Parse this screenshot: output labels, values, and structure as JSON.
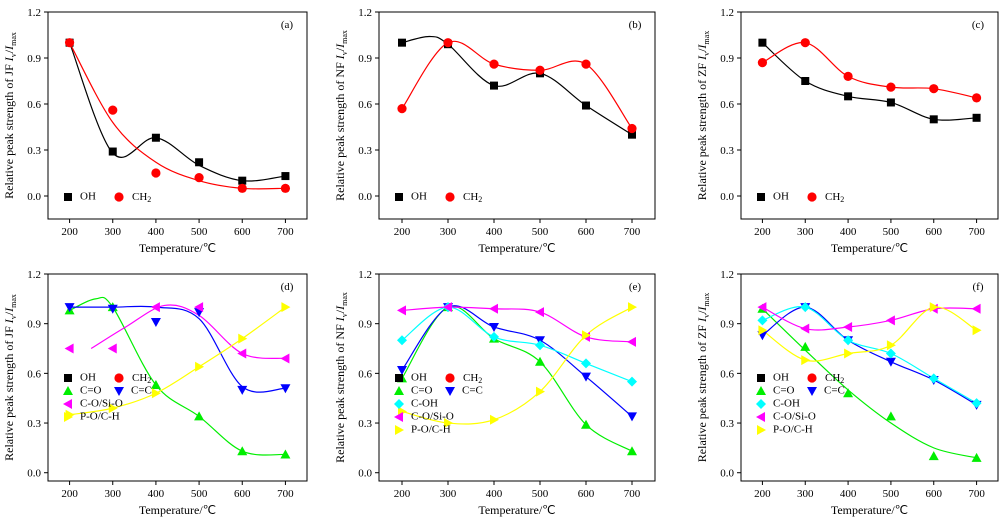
{
  "chart_data": [
    {
      "panel": "(a)",
      "type": "scatter",
      "ylabel": "Relative peak strength of JF Iv/Imax",
      "xlabel": "Temperature/℃",
      "xlim": [
        150,
        750
      ],
      "ylim": [
        -0.15,
        1.2
      ],
      "xticks": [
        200,
        300,
        400,
        500,
        600,
        700
      ],
      "yticks": [
        "0.0",
        "0.3",
        "0.6",
        "0.9",
        "1.2"
      ],
      "legend": "bottom-left",
      "series": [
        {
          "name": "OH",
          "marker": "square",
          "color": "#000000",
          "x": [
            200,
            300,
            400,
            500,
            600,
            700
          ],
          "y": [
            1.0,
            0.29,
            0.38,
            0.22,
            0.1,
            0.13
          ],
          "curve": [
            [
              200,
              1.0
            ],
            [
              300,
              0.28
            ],
            [
              400,
              0.38
            ],
            [
              500,
              0.2
            ],
            [
              600,
              0.1
            ],
            [
              700,
              0.13
            ]
          ]
        },
        {
          "name": "CH2",
          "marker": "circle",
          "color": "#ff0000",
          "x": [
            200,
            300,
            400,
            500,
            600,
            700
          ],
          "y": [
            1.0,
            0.56,
            0.15,
            0.12,
            0.05,
            0.05
          ],
          "curve": [
            [
              200,
              1.0
            ],
            [
              300,
              0.48
            ],
            [
              400,
              0.22
            ],
            [
              500,
              0.1
            ],
            [
              600,
              0.05
            ],
            [
              700,
              0.05
            ]
          ]
        }
      ]
    },
    {
      "panel": "(b)",
      "type": "scatter",
      "ylabel": "Relative peak strength of NF Iv/Imax",
      "xlabel": "Temperature/℃",
      "xlim": [
        150,
        750
      ],
      "ylim": [
        -0.15,
        1.2
      ],
      "xticks": [
        200,
        300,
        400,
        500,
        600,
        700
      ],
      "yticks": [
        "0.0",
        "0.3",
        "0.6",
        "0.9",
        "1.2"
      ],
      "legend": "bottom-left",
      "series": [
        {
          "name": "OH",
          "marker": "square",
          "color": "#000000",
          "x": [
            200,
            300,
            400,
            500,
            600,
            700
          ],
          "y": [
            1.0,
            0.99,
            0.72,
            0.8,
            0.59,
            0.4
          ],
          "curve": [
            [
              200,
              1.0
            ],
            [
              260,
              1.04
            ],
            [
              300,
              0.99
            ],
            [
              400,
              0.72
            ],
            [
              500,
              0.8
            ],
            [
              600,
              0.59
            ],
            [
              700,
              0.4
            ]
          ]
        },
        {
          "name": "CH2",
          "marker": "circle",
          "color": "#ff0000",
          "x": [
            200,
            300,
            400,
            500,
            600,
            700
          ],
          "y": [
            0.57,
            1.0,
            0.86,
            0.82,
            0.86,
            0.44
          ],
          "curve": [
            [
              200,
              0.57
            ],
            [
              300,
              1.0
            ],
            [
              400,
              0.86
            ],
            [
              500,
              0.82
            ],
            [
              600,
              0.86
            ],
            [
              700,
              0.44
            ]
          ]
        }
      ]
    },
    {
      "panel": "(c)",
      "type": "scatter",
      "ylabel": "Relative peak strength of ZF Iv/Imax",
      "xlabel": "Temperature/℃",
      "xlim": [
        150,
        750
      ],
      "ylim": [
        -0.15,
        1.2
      ],
      "xticks": [
        200,
        300,
        400,
        500,
        600,
        700
      ],
      "yticks": [
        "0.0",
        "0.3",
        "0.6",
        "0.9",
        "1.2"
      ],
      "legend": "bottom-left",
      "series": [
        {
          "name": "OH",
          "marker": "square",
          "color": "#000000",
          "x": [
            200,
            300,
            400,
            500,
            600,
            700
          ],
          "y": [
            1.0,
            0.75,
            0.65,
            0.61,
            0.5,
            0.51
          ],
          "curve": [
            [
              200,
              1.0
            ],
            [
              300,
              0.75
            ],
            [
              400,
              0.65
            ],
            [
              500,
              0.61
            ],
            [
              600,
              0.5
            ],
            [
              700,
              0.51
            ]
          ]
        },
        {
          "name": "CH2",
          "marker": "circle",
          "color": "#ff0000",
          "x": [
            200,
            300,
            400,
            500,
            600,
            700
          ],
          "y": [
            0.87,
            1.0,
            0.78,
            0.71,
            0.7,
            0.64
          ],
          "curve": [
            [
              200,
              0.87
            ],
            [
              300,
              1.0
            ],
            [
              400,
              0.78
            ],
            [
              500,
              0.71
            ],
            [
              600,
              0.7
            ],
            [
              700,
              0.64
            ]
          ]
        }
      ]
    },
    {
      "panel": "(d)",
      "type": "scatter",
      "ylabel": "Relative peak strength of JF Iv/Imax",
      "xlabel": "Temperature/℃",
      "xlim": [
        150,
        750
      ],
      "ylim": [
        -0.05,
        1.2
      ],
      "xticks": [
        200,
        300,
        400,
        500,
        600,
        700
      ],
      "yticks": [
        "0.0",
        "0.3",
        "0.6",
        "0.9",
        "1.2"
      ],
      "legend": "bottom-left",
      "series": [
        {
          "name": "C=O",
          "marker": "triangle-up",
          "color": "#00ee00",
          "x": [
            200,
            300,
            400,
            500,
            600,
            700
          ],
          "y": [
            0.98,
            1.0,
            0.53,
            0.34,
            0.13,
            0.11
          ],
          "curve": [
            [
              200,
              0.98
            ],
            [
              260,
              1.05
            ],
            [
              300,
              1.0
            ],
            [
              400,
              0.53
            ],
            [
              500,
              0.34
            ],
            [
              600,
              0.13
            ],
            [
              700,
              0.11
            ]
          ]
        },
        {
          "name": "C=C",
          "marker": "triangle-down",
          "color": "#0000ff",
          "x": [
            200,
            300,
            400,
            500,
            600,
            700
          ],
          "y": [
            1.0,
            0.99,
            0.91,
            0.97,
            0.5,
            0.51
          ],
          "curve": [
            [
              200,
              1.0
            ],
            [
              300,
              1.0
            ],
            [
              400,
              1.0
            ],
            [
              500,
              0.93
            ],
            [
              600,
              0.52
            ],
            [
              700,
              0.51
            ]
          ]
        },
        {
          "name": "C-O/Si-O",
          "marker": "triangle-left",
          "color": "#ff00ff",
          "x": [
            200,
            300,
            400,
            500,
            600,
            700
          ],
          "y": [
            0.75,
            0.75,
            1.0,
            1.0,
            0.72,
            0.69
          ],
          "curve": [
            [
              250,
              0.75
            ],
            [
              330,
              0.88
            ],
            [
              420,
              1.01
            ],
            [
              500,
              0.95
            ],
            [
              600,
              0.72
            ],
            [
              700,
              0.69
            ]
          ]
        },
        {
          "name": "P-O/C-H",
          "marker": "triangle-right",
          "color": "#ffff00",
          "x": [
            200,
            300,
            400,
            500,
            600,
            700
          ],
          "y": [
            0.35,
            0.39,
            0.48,
            0.64,
            0.81,
            1.0
          ],
          "curve": [
            [
              200,
              0.35
            ],
            [
              300,
              0.39
            ],
            [
              400,
              0.48
            ],
            [
              500,
              0.64
            ],
            [
              600,
              0.81
            ],
            [
              700,
              1.0
            ]
          ]
        }
      ]
    },
    {
      "panel": "(e)",
      "type": "scatter",
      "ylabel": "Relative peak strength of NF Iv/Imax",
      "xlabel": "Temperature/℃",
      "xlim": [
        150,
        750
      ],
      "ylim": [
        -0.05,
        1.2
      ],
      "xticks": [
        200,
        300,
        400,
        500,
        600,
        700
      ],
      "yticks": [
        "0.0",
        "0.3",
        "0.6",
        "0.9",
        "1.2"
      ],
      "legend": "bottom-left",
      "series": [
        {
          "name": "C=O",
          "marker": "triangle-up",
          "color": "#00ee00",
          "x": [
            200,
            300,
            400,
            500,
            600,
            700
          ],
          "y": [
            0.57,
            1.0,
            0.81,
            0.67,
            0.29,
            0.13
          ],
          "curve": [
            [
              200,
              0.57
            ],
            [
              300,
              1.0
            ],
            [
              400,
              0.81
            ],
            [
              500,
              0.67
            ],
            [
              600,
              0.29
            ],
            [
              700,
              0.13
            ]
          ]
        },
        {
          "name": "C=C",
          "marker": "triangle-down",
          "color": "#0000ff",
          "x": [
            200,
            300,
            400,
            500,
            600,
            700
          ],
          "y": [
            0.62,
            1.0,
            0.88,
            0.8,
            0.58,
            0.34
          ],
          "curve": [
            [
              200,
              0.62
            ],
            [
              300,
              1.0
            ],
            [
              400,
              0.88
            ],
            [
              500,
              0.8
            ],
            [
              600,
              0.58
            ],
            [
              700,
              0.34
            ]
          ]
        },
        {
          "name": "C-OH",
          "marker": "diamond",
          "color": "#00ffff",
          "x": [
            200,
            300,
            400,
            500,
            600,
            700
          ],
          "y": [
            0.8,
            1.0,
            0.82,
            0.77,
            0.66,
            0.55
          ],
          "curve": [
            [
              200,
              0.8
            ],
            [
              300,
              1.0
            ],
            [
              400,
              0.82
            ],
            [
              500,
              0.77
            ],
            [
              600,
              0.66
            ],
            [
              700,
              0.55
            ]
          ]
        },
        {
          "name": "C-O/Si-O",
          "marker": "triangle-left",
          "color": "#ff00ff",
          "x": [
            200,
            300,
            400,
            500,
            600,
            700
          ],
          "y": [
            0.98,
            1.0,
            0.99,
            0.97,
            0.82,
            0.79
          ],
          "curve": [
            [
              200,
              0.98
            ],
            [
              300,
              1.0
            ],
            [
              400,
              0.99
            ],
            [
              500,
              0.97
            ],
            [
              600,
              0.82
            ],
            [
              700,
              0.79
            ]
          ]
        },
        {
          "name": "P-O/C-H",
          "marker": "triangle-right",
          "color": "#ffff00",
          "x": [
            200,
            300,
            400,
            500,
            600,
            700
          ],
          "y": [
            0.37,
            0.3,
            0.32,
            0.49,
            0.83,
            1.0
          ],
          "curve": [
            [
              200,
              0.37
            ],
            [
              300,
              0.3
            ],
            [
              400,
              0.32
            ],
            [
              500,
              0.49
            ],
            [
              600,
              0.83
            ],
            [
              700,
              1.0
            ]
          ]
        }
      ]
    },
    {
      "panel": "(f)",
      "type": "scatter",
      "ylabel": "Relative peak strength of ZF Iv/Imax",
      "xlabel": "Temperature/℃",
      "xlim": [
        150,
        750
      ],
      "ylim": [
        -0.05,
        1.2
      ],
      "xticks": [
        200,
        300,
        400,
        500,
        600,
        700
      ],
      "yticks": [
        "0.0",
        "0.3",
        "0.6",
        "0.9",
        "1.2"
      ],
      "legend": "bottom-left",
      "series": [
        {
          "name": "C=O",
          "marker": "triangle-up",
          "color": "#00ee00",
          "x": [
            200,
            300,
            400,
            500,
            600,
            700
          ],
          "y": [
            0.99,
            0.76,
            0.48,
            0.34,
            0.1,
            0.09
          ],
          "curve": [
            [
              200,
              0.99
            ],
            [
              300,
              0.74
            ],
            [
              400,
              0.5
            ],
            [
              500,
              0.3
            ],
            [
              600,
              0.15
            ],
            [
              700,
              0.09
            ]
          ]
        },
        {
          "name": "C=C",
          "marker": "triangle-down",
          "color": "#0000ff",
          "x": [
            200,
            300,
            400,
            500,
            600,
            700
          ],
          "y": [
            0.83,
            1.0,
            0.8,
            0.67,
            0.56,
            0.41
          ],
          "curve": [
            [
              200,
              0.83
            ],
            [
              300,
              1.0
            ],
            [
              400,
              0.8
            ],
            [
              500,
              0.67
            ],
            [
              600,
              0.56
            ],
            [
              700,
              0.41
            ]
          ]
        },
        {
          "name": "C-OH",
          "marker": "diamond",
          "color": "#00ffff",
          "x": [
            200,
            300,
            400,
            500,
            600,
            700
          ],
          "y": [
            0.92,
            1.0,
            0.8,
            0.72,
            0.57,
            0.42
          ],
          "curve": [
            [
              200,
              0.92
            ],
            [
              300,
              1.0
            ],
            [
              400,
              0.8
            ],
            [
              500,
              0.72
            ],
            [
              600,
              0.57
            ],
            [
              700,
              0.42
            ]
          ]
        },
        {
          "name": "C-O/Si-O",
          "marker": "triangle-left",
          "color": "#ff00ff",
          "x": [
            200,
            300,
            400,
            500,
            600,
            700
          ],
          "y": [
            1.0,
            0.87,
            0.88,
            0.92,
            0.99,
            0.99
          ],
          "curve": [
            [
              200,
              1.0
            ],
            [
              300,
              0.87
            ],
            [
              400,
              0.88
            ],
            [
              500,
              0.92
            ],
            [
              600,
              0.99
            ],
            [
              700,
              0.99
            ]
          ]
        },
        {
          "name": "P-O/C-H",
          "marker": "triangle-right",
          "color": "#ffff00",
          "x": [
            200,
            300,
            400,
            500,
            600,
            700
          ],
          "y": [
            0.86,
            0.68,
            0.72,
            0.77,
            1.0,
            0.86
          ],
          "curve": [
            [
              200,
              0.86
            ],
            [
              300,
              0.68
            ],
            [
              400,
              0.72
            ],
            [
              500,
              0.77
            ],
            [
              600,
              1.0
            ],
            [
              700,
              0.86
            ]
          ]
        }
      ]
    }
  ],
  "legend_rows": {
    "top_pair": [
      {
        "marker": "square",
        "color": "#000000",
        "label": "OH"
      },
      {
        "marker": "circle",
        "color": "#ff0000",
        "label": "CH2"
      }
    ]
  }
}
